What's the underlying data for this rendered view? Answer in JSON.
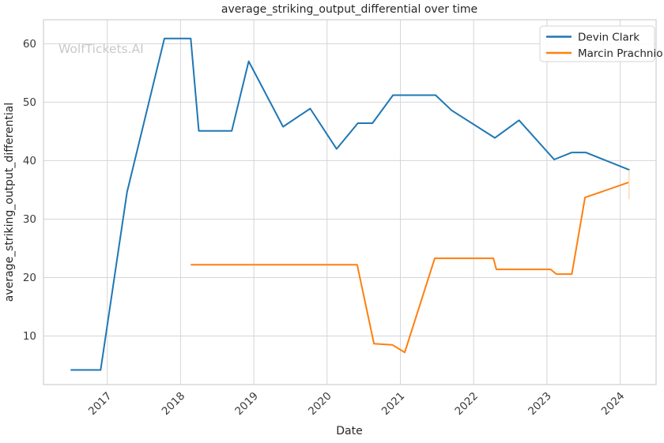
{
  "chart_data": {
    "type": "line",
    "title": "average_striking_output_differential over time",
    "xlabel": "Date",
    "ylabel": "average_striking_output_differential",
    "watermark": "WolfTickets.AI",
    "grid": true,
    "legend_position": "upper right",
    "x_ticks": [
      "2017",
      "2018",
      "2019",
      "2020",
      "2021",
      "2022",
      "2023",
      "2024"
    ],
    "y_ticks": [
      10,
      20,
      30,
      40,
      50,
      60
    ],
    "x_range": [
      2016.13,
      2024.49
    ],
    "y_range": [
      1.7,
      64.1
    ],
    "colors": {
      "grid": "#d6d6d6",
      "spine": "#cfcfcf",
      "text": "#262626",
      "watermark": "#c9c9c9"
    },
    "series": [
      {
        "name": "Devin Clark",
        "color": "#1f77b4",
        "points": [
          [
            2016.5,
            4.2
          ],
          [
            2016.91,
            4.2
          ],
          [
            2017.27,
            34.6
          ],
          [
            2017.78,
            60.9
          ],
          [
            2018.14,
            60.9
          ],
          [
            2018.25,
            45.1
          ],
          [
            2018.7,
            45.1
          ],
          [
            2018.93,
            57.0
          ],
          [
            2019.4,
            45.8
          ],
          [
            2019.77,
            48.9
          ],
          [
            2020.13,
            42.0
          ],
          [
            2020.42,
            46.4
          ],
          [
            2020.62,
            46.4
          ],
          [
            2020.9,
            51.2
          ],
          [
            2021.48,
            51.2
          ],
          [
            2021.7,
            48.6
          ],
          [
            2022.29,
            43.9
          ],
          [
            2022.62,
            46.9
          ],
          [
            2023.1,
            40.2
          ],
          [
            2023.34,
            41.4
          ],
          [
            2023.53,
            41.4
          ],
          [
            2024.13,
            38.4
          ]
        ]
      },
      {
        "name": "Marcin Prachnio",
        "color": "#ff7f0e",
        "points": [
          [
            2018.14,
            22.2
          ],
          [
            2020.41,
            22.2
          ],
          [
            2020.64,
            8.7
          ],
          [
            2020.89,
            8.5
          ],
          [
            2021.06,
            7.2
          ],
          [
            2021.47,
            23.3
          ],
          [
            2022.27,
            23.3
          ],
          [
            2022.31,
            21.4
          ],
          [
            2023.05,
            21.4
          ],
          [
            2023.13,
            20.6
          ],
          [
            2023.34,
            20.6
          ],
          [
            2023.52,
            33.7
          ],
          [
            2024.12,
            36.3
          ]
        ]
      }
    ],
    "end_marker": {
      "x": 2024.12,
      "y_from": 33.4,
      "y_to": 38.4,
      "color": "#ffd9b3"
    }
  }
}
